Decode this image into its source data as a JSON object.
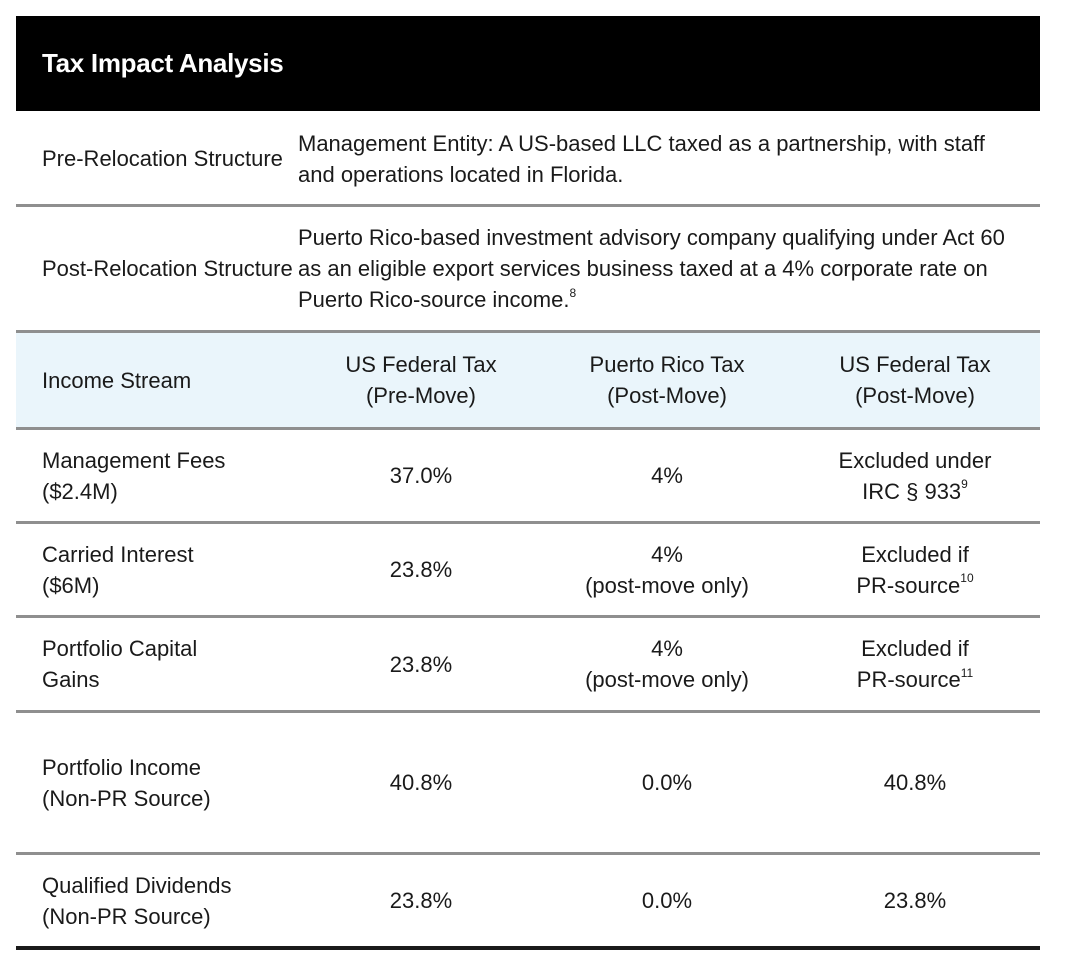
{
  "title": "Tax Impact Analysis",
  "structures": [
    {
      "label_lines": [
        "Pre-Relocation",
        "Structure"
      ],
      "description_lines": [
        "Management Entity: A US-based LLC taxed as a",
        "partnership, with staff and operations located in Florida."
      ],
      "footnote": ""
    },
    {
      "label_lines": [
        "Post-Relocation",
        "Structure"
      ],
      "description_lines": [
        "Puerto Rico-based investment advisory company qualifying",
        "under Act 60 as an eligible export services business taxed at",
        "a 4% corporate rate on Puerto Rico-source income."
      ],
      "footnote": "8"
    }
  ],
  "table": {
    "columns": [
      {
        "lines": [
          "Income Stream"
        ]
      },
      {
        "lines": [
          "US Federal Tax",
          "(Pre-Move)"
        ]
      },
      {
        "lines": [
          "Puerto Rico Tax",
          "(Post-Move)"
        ]
      },
      {
        "lines": [
          "US Federal Tax",
          "(Post-Move)"
        ]
      }
    ],
    "rows": [
      {
        "stream": [
          "Management Fees",
          "($2.4M)"
        ],
        "us_pre": [
          "37.0%"
        ],
        "pr_post": [
          "4%"
        ],
        "us_post": [
          "Excluded under",
          "IRC § 933"
        ],
        "us_post_footnote": "9"
      },
      {
        "stream": [
          "Carried Interest",
          "($6M)"
        ],
        "us_pre": [
          "23.8%"
        ],
        "pr_post": [
          "4%",
          "(post-move only)"
        ],
        "us_post": [
          "Excluded if",
          "PR-source"
        ],
        "us_post_footnote": "10"
      },
      {
        "stream": [
          "Portfolio Capital",
          "Gains"
        ],
        "us_pre": [
          "23.8%"
        ],
        "pr_post": [
          "4%",
          "(post-move only)"
        ],
        "us_post": [
          "Excluded if",
          "PR-source"
        ],
        "us_post_footnote": "11"
      },
      {
        "stream": [
          "Portfolio Income",
          "(Non-PR Source)"
        ],
        "us_pre": [
          "40.8%"
        ],
        "pr_post": [
          "0.0%"
        ],
        "us_post": [
          "40.8%"
        ],
        "us_post_footnote": ""
      },
      {
        "stream": [
          "Qualified Dividends",
          "(Non-PR Source)"
        ],
        "us_pre": [
          "23.8%"
        ],
        "pr_post": [
          "0.0%"
        ],
        "us_post": [
          "23.8%"
        ],
        "us_post_footnote": ""
      }
    ]
  },
  "colors": {
    "title_bar": "#000000",
    "header_row": "#eaf5fb",
    "divider": "#8f8f8f",
    "bottom_rule": "#1a1a1a"
  }
}
